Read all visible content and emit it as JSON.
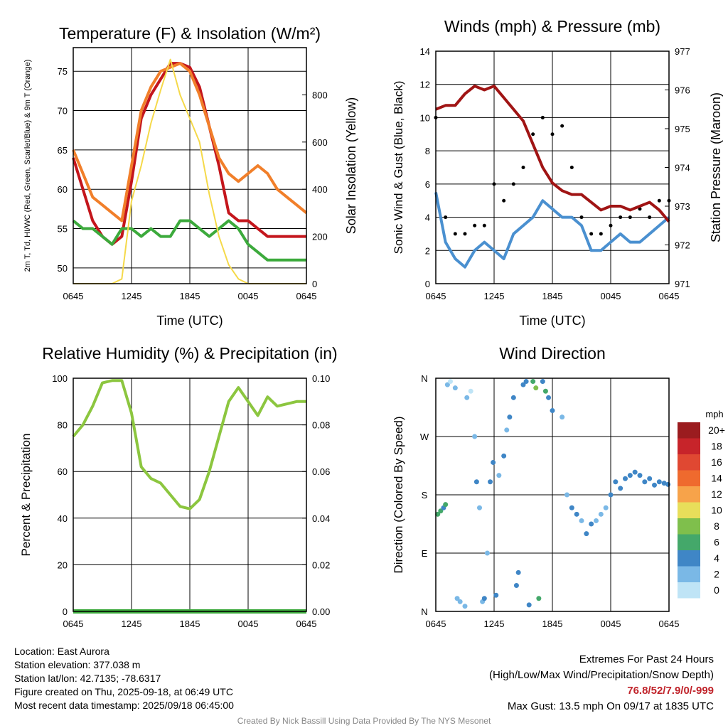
{
  "chart_data": [
    {
      "type": "line",
      "title": "Temperature (F) & Insolation (W/m²)",
      "xlabel": "Time (UTC)",
      "ylabel": "2m T, Td, HI/WC (Red, Green, Scarlet/Blue) & 9m T (Orange)",
      "y2label": "Solar Insolation (Yellow)",
      "ylim": [
        48,
        78
      ],
      "y2lim": [
        0,
        1000
      ],
      "yticks": [
        50,
        55,
        60,
        65,
        70,
        75
      ],
      "y2ticks": [
        0,
        200,
        400,
        600,
        800
      ],
      "xticks": [
        "0645",
        "1245",
        "1845",
        "0045",
        "0645"
      ],
      "x": [
        0,
        1,
        2,
        3,
        4,
        5,
        6,
        7,
        8,
        9,
        10,
        11,
        12,
        13,
        14,
        15,
        16,
        17,
        18,
        19,
        20,
        21,
        22,
        23,
        24
      ],
      "series": [
        {
          "name": "2m T",
          "color": "#c4161c",
          "values": [
            64,
            60,
            56,
            54,
            53,
            54,
            61,
            69,
            72,
            74,
            76,
            76,
            75.5,
            73,
            68,
            63,
            57,
            56,
            56,
            55,
            54,
            54,
            54,
            54,
            54
          ]
        },
        {
          "name": "9m T",
          "color": "#f17f2a",
          "values": [
            65,
            62,
            59,
            58,
            57,
            56,
            63,
            70,
            73,
            75,
            75.5,
            76,
            75,
            72,
            68,
            64,
            62,
            61,
            62,
            63,
            62,
            60,
            59,
            58,
            57
          ]
        },
        {
          "name": "Td",
          "color": "#3caa3c",
          "values": [
            56,
            55,
            55,
            54,
            53,
            55,
            55,
            54,
            55,
            54,
            54,
            56,
            56,
            55,
            54,
            55,
            56,
            55,
            53,
            52,
            51,
            51,
            51,
            51,
            51
          ]
        },
        {
          "name": "Solar Insolation",
          "color": "#f5d94a",
          "axis": "right",
          "values": [
            0,
            0,
            0,
            0,
            0,
            20,
            350,
            500,
            680,
            820,
            950,
            800,
            700,
            600,
            380,
            200,
            80,
            20,
            0,
            0,
            0,
            0,
            0,
            0,
            0
          ]
        }
      ]
    },
    {
      "type": "line",
      "title": "Winds (mph) & Pressure (mb)",
      "xlabel": "Time (UTC)",
      "ylabel": "Sonic Wind & Gust (Blue, Black)",
      "y2label": "Station Pressure (Maroon)",
      "ylim": [
        0,
        14
      ],
      "y2lim": [
        971,
        977
      ],
      "yticks": [
        0,
        2,
        4,
        6,
        8,
        10,
        12,
        14
      ],
      "y2ticks": [
        971,
        972,
        973,
        974,
        975,
        976,
        977
      ],
      "xticks": [
        "0645",
        "1245",
        "1845",
        "0045",
        "0645"
      ],
      "x": [
        0,
        1,
        2,
        3,
        4,
        5,
        6,
        7,
        8,
        9,
        10,
        11,
        12,
        13,
        14,
        15,
        16,
        17,
        18,
        19,
        20,
        21,
        22,
        23,
        24
      ],
      "series": [
        {
          "name": "Sonic Wind",
          "color": "#4a90d0",
          "values": [
            5.5,
            2.5,
            1.5,
            1,
            2,
            2.5,
            2,
            1.5,
            3,
            3.5,
            4,
            5,
            4.5,
            4,
            4,
            3.5,
            2,
            2,
            2.5,
            3,
            2.5,
            2.5,
            3,
            3.5,
            4
          ]
        },
        {
          "name": "Gust",
          "color": "#000000",
          "values": [
            10,
            4,
            3,
            3,
            3.5,
            3.5,
            6,
            5,
            6,
            7,
            9,
            10,
            9,
            9.5,
            7,
            4,
            3,
            3,
            3.5,
            4,
            4,
            4.5,
            4,
            5,
            5
          ]
        },
        {
          "name": "Station Pressure",
          "color": "#a01414",
          "axis": "right",
          "values": [
            975.5,
            975.6,
            975.6,
            975.9,
            976.1,
            976.0,
            976.1,
            975.8,
            975.5,
            975.2,
            974.6,
            974.0,
            973.6,
            973.4,
            973.3,
            973.3,
            973.1,
            972.9,
            973.0,
            973.0,
            972.9,
            973.0,
            973.1,
            972.9,
            972.6
          ]
        }
      ]
    },
    {
      "type": "line",
      "title": "Relative Humidity (%) & Precipitation (in)",
      "xlabel": "",
      "ylabel": "Percent & Precipitation",
      "ylim": [
        0,
        100
      ],
      "y2lim": [
        0,
        0.1
      ],
      "yticks": [
        0,
        20,
        40,
        60,
        80,
        100
      ],
      "y2ticks": [
        "0.00",
        "0.02",
        "0.04",
        "0.06",
        "0.08",
        "0.10"
      ],
      "xticks": [
        "0645",
        "1245",
        "1845",
        "0045",
        "0645"
      ],
      "x": [
        0,
        1,
        2,
        3,
        4,
        5,
        6,
        7,
        8,
        9,
        10,
        11,
        12,
        13,
        14,
        15,
        16,
        17,
        18,
        19,
        20,
        21,
        22,
        23,
        24
      ],
      "series": [
        {
          "name": "Relative Humidity",
          "color": "#8cc63f",
          "values": [
            75,
            80,
            88,
            98,
            99,
            99,
            85,
            62,
            57,
            55,
            50,
            45,
            44,
            48,
            60,
            75,
            90,
            96,
            90,
            84,
            92,
            88,
            89,
            90,
            90
          ]
        },
        {
          "name": "Precipitation",
          "color": "#3caa3c",
          "axis": "right",
          "values": [
            0,
            0,
            0,
            0,
            0,
            0,
            0,
            0,
            0,
            0,
            0,
            0,
            0,
            0,
            0,
            0,
            0,
            0,
            0,
            0,
            0,
            0,
            0,
            0,
            0
          ]
        }
      ]
    },
    {
      "type": "scatter",
      "title": "Wind Direction",
      "xlabel": "",
      "ylabel": "Direction (Colored By Speed)",
      "yticks": [
        "N",
        "E",
        "S",
        "W",
        "N"
      ],
      "ylim": [
        0,
        360
      ],
      "xticks": [
        "0645",
        "1245",
        "1845",
        "0045",
        "0645"
      ],
      "colorbar": {
        "unit": "mph",
        "labels": [
          "20+",
          "18",
          "16",
          "14",
          "12",
          "10",
          "8",
          "6",
          "4",
          "2",
          "0"
        ],
        "colors": [
          "#9b1c1f",
          "#c7242a",
          "#e04832",
          "#ef6a2e",
          "#f7a34a",
          "#e8de5a",
          "#7fbf4c",
          "#44a86a",
          "#3f86c6",
          "#7ab8e6",
          "#bfe4f6"
        ]
      },
      "points": [
        {
          "x": 0.2,
          "y": 150,
          "s": 6
        },
        {
          "x": 0.5,
          "y": 155,
          "s": 6
        },
        {
          "x": 0.8,
          "y": 160,
          "s": 4
        },
        {
          "x": 1.0,
          "y": 165,
          "s": 6
        },
        {
          "x": 1.2,
          "y": 350,
          "s": 1
        },
        {
          "x": 1.5,
          "y": 355,
          "s": 0
        },
        {
          "x": 2.0,
          "y": 345,
          "s": 1
        },
        {
          "x": 2.2,
          "y": 20,
          "s": 2
        },
        {
          "x": 2.5,
          "y": 15,
          "s": 1
        },
        {
          "x": 3.0,
          "y": 8,
          "s": 2
        },
        {
          "x": 3.2,
          "y": 330,
          "s": 1
        },
        {
          "x": 3.6,
          "y": 340,
          "s": 0
        },
        {
          "x": 4.0,
          "y": 270,
          "s": 2
        },
        {
          "x": 4.2,
          "y": 200,
          "s": 3
        },
        {
          "x": 4.5,
          "y": 160,
          "s": 2
        },
        {
          "x": 4.8,
          "y": 15,
          "s": 2
        },
        {
          "x": 5.0,
          "y": 20,
          "s": 3
        },
        {
          "x": 5.3,
          "y": 90,
          "s": 2
        },
        {
          "x": 5.6,
          "y": 200,
          "s": 3
        },
        {
          "x": 5.9,
          "y": 230,
          "s": 3
        },
        {
          "x": 6.2,
          "y": 25,
          "s": 3
        },
        {
          "x": 6.5,
          "y": 210,
          "s": 2
        },
        {
          "x": 7.0,
          "y": 240,
          "s": 3
        },
        {
          "x": 7.3,
          "y": 280,
          "s": 2
        },
        {
          "x": 7.6,
          "y": 300,
          "s": 3
        },
        {
          "x": 8.0,
          "y": 330,
          "s": 4
        },
        {
          "x": 8.3,
          "y": 40,
          "s": 4
        },
        {
          "x": 8.5,
          "y": 60,
          "s": 3
        },
        {
          "x": 9.0,
          "y": 350,
          "s": 4
        },
        {
          "x": 9.3,
          "y": 355,
          "s": 4
        },
        {
          "x": 9.6,
          "y": 10,
          "s": 3
        },
        {
          "x": 10.0,
          "y": 355,
          "s": 6
        },
        {
          "x": 10.3,
          "y": 345,
          "s": 7
        },
        {
          "x": 10.6,
          "y": 20,
          "s": 6
        },
        {
          "x": 11.0,
          "y": 355,
          "s": 4
        },
        {
          "x": 11.3,
          "y": 340,
          "s": 6
        },
        {
          "x": 11.6,
          "y": 330,
          "s": 4
        },
        {
          "x": 12.0,
          "y": 310,
          "s": 3
        },
        {
          "x": 13.0,
          "y": 300,
          "s": 2
        },
        {
          "x": 13.5,
          "y": 180,
          "s": 1
        },
        {
          "x": 14.0,
          "y": 160,
          "s": 3
        },
        {
          "x": 14.5,
          "y": 150,
          "s": 3
        },
        {
          "x": 15.0,
          "y": 140,
          "s": 2
        },
        {
          "x": 15.5,
          "y": 120,
          "s": 3
        },
        {
          "x": 16.0,
          "y": 135,
          "s": 3
        },
        {
          "x": 16.5,
          "y": 140,
          "s": 2
        },
        {
          "x": 17.0,
          "y": 150,
          "s": 2
        },
        {
          "x": 17.5,
          "y": 160,
          "s": 2
        },
        {
          "x": 18.0,
          "y": 180,
          "s": 3
        },
        {
          "x": 18.5,
          "y": 200,
          "s": 3
        },
        {
          "x": 19.0,
          "y": 190,
          "s": 4
        },
        {
          "x": 19.5,
          "y": 205,
          "s": 3
        },
        {
          "x": 20.0,
          "y": 210,
          "s": 4
        },
        {
          "x": 20.5,
          "y": 215,
          "s": 4
        },
        {
          "x": 21.0,
          "y": 210,
          "s": 4
        },
        {
          "x": 21.5,
          "y": 200,
          "s": 3
        },
        {
          "x": 22.0,
          "y": 205,
          "s": 4
        },
        {
          "x": 22.5,
          "y": 195,
          "s": 4
        },
        {
          "x": 23.0,
          "y": 200,
          "s": 4
        },
        {
          "x": 23.5,
          "y": 198,
          "s": 4
        },
        {
          "x": 23.9,
          "y": 196,
          "s": 4
        }
      ]
    }
  ],
  "info": {
    "location": "Location: East Aurora",
    "elevation": "Station elevation: 377.038 m",
    "latlon": "Station lat/lon: 42.7135; -78.6317",
    "created": "Figure created on Thu, 2025-09-18, at 06:49 UTC",
    "recent": "Most recent data timestamp: 2025/09/18 06:45:00"
  },
  "extremes": {
    "title": "Extremes For Past 24 Hours",
    "subtitle": "(High/Low/Max Wind/Precipitation/Snow Depth)",
    "values": "76.8/52/7.9/0/-999",
    "gust": "Max Gust: 13.5 mph On 09/17 at 1835 UTC"
  },
  "credit": "Created By Nick Bassill Using Data Provided By The NYS Mesonet"
}
